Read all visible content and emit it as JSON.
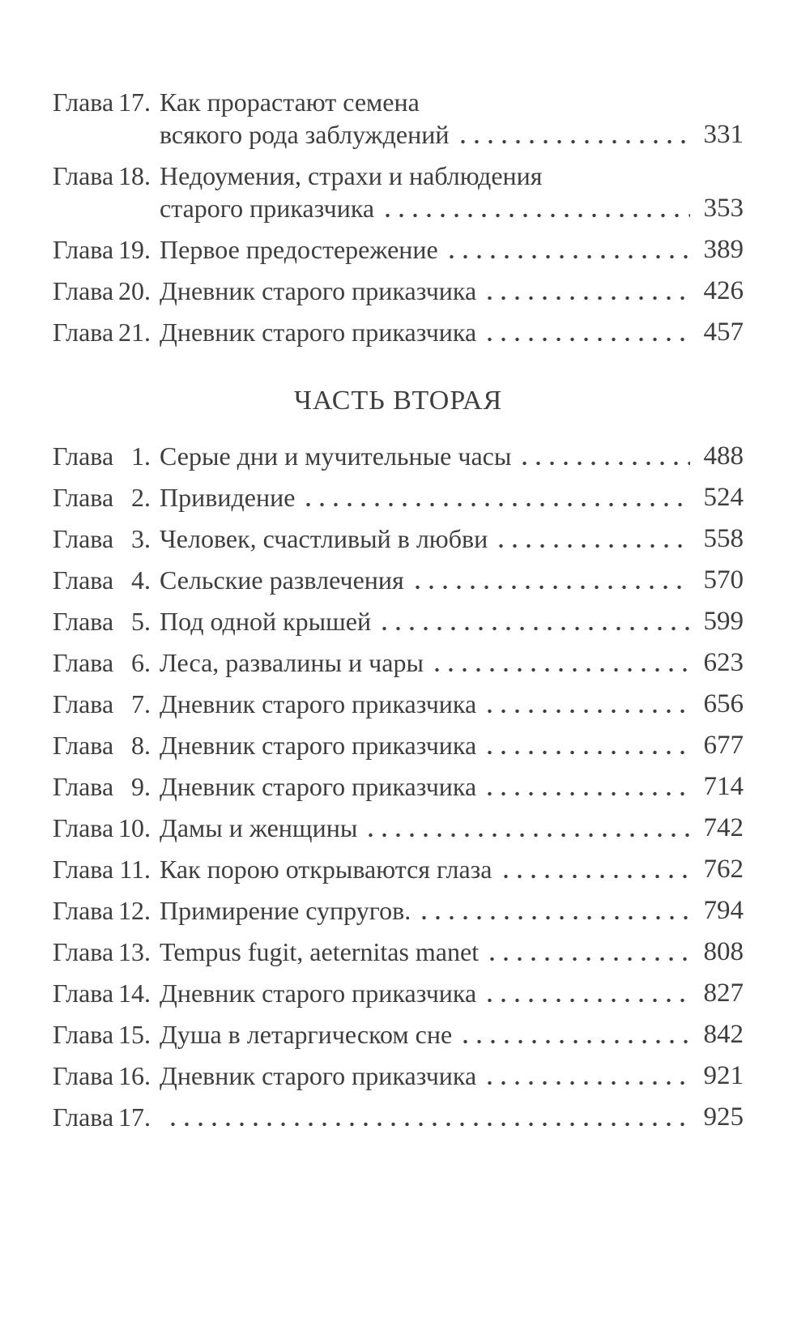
{
  "colors": {
    "background": "#ffffff",
    "text": "#3e3e3e"
  },
  "toc": {
    "chapter_word": "Глава",
    "part1": {
      "entries": [
        {
          "num": "17.",
          "lines": [
            "Как прорастают семена",
            "всякого рода заблуждений"
          ],
          "page": "331"
        },
        {
          "num": "18.",
          "lines": [
            "Недоумения, страхи и наблюдения",
            "старого приказчика"
          ],
          "page": "353"
        },
        {
          "num": "19.",
          "title": "Первое предостережение",
          "page": "389"
        },
        {
          "num": "20.",
          "title": "Дневник старого приказчика",
          "page": "426"
        },
        {
          "num": "21.",
          "title": "Дневник старого приказчика",
          "page": "457"
        }
      ]
    },
    "part2": {
      "heading": "ЧАСТЬ ВТОРАЯ",
      "entries": [
        {
          "num": "1.",
          "title": "Серые дни и мучительные часы",
          "page": "488"
        },
        {
          "num": "2.",
          "title": "Привидение",
          "page": "524"
        },
        {
          "num": "3.",
          "title": "Человек, счастливый в любви",
          "page": "558"
        },
        {
          "num": "4.",
          "title": "Сельские развлечения",
          "page": "570"
        },
        {
          "num": "5.",
          "title": "Под одной крышей",
          "page": "599"
        },
        {
          "num": "6.",
          "title": "Леса, развалины и чары",
          "page": "623"
        },
        {
          "num": "7.",
          "title": "Дневник старого приказчика",
          "page": "656"
        },
        {
          "num": "8.",
          "title": "Дневник старого приказчика",
          "page": "677"
        },
        {
          "num": "9.",
          "title": "Дневник старого приказчика",
          "page": "714"
        },
        {
          "num": "10.",
          "title": "Дамы и женщины",
          "page": "742"
        },
        {
          "num": "11.",
          "title": "Как порою открываются глаза",
          "page": "762"
        },
        {
          "num": "12.",
          "title": "Примирение супругов.",
          "page": "794"
        },
        {
          "num": "13.",
          "title": "Tempus fugit, aeternitas manet",
          "page": "808"
        },
        {
          "num": "14.",
          "title": "Дневник старого приказчика",
          "page": "827"
        },
        {
          "num": "15.",
          "title": "Душа в летаргическом сне",
          "page": "842"
        },
        {
          "num": "16.",
          "title": "Дневник старого приказчика",
          "page": "921"
        },
        {
          "num": "17.",
          "title": "",
          "page": "925"
        }
      ]
    }
  }
}
